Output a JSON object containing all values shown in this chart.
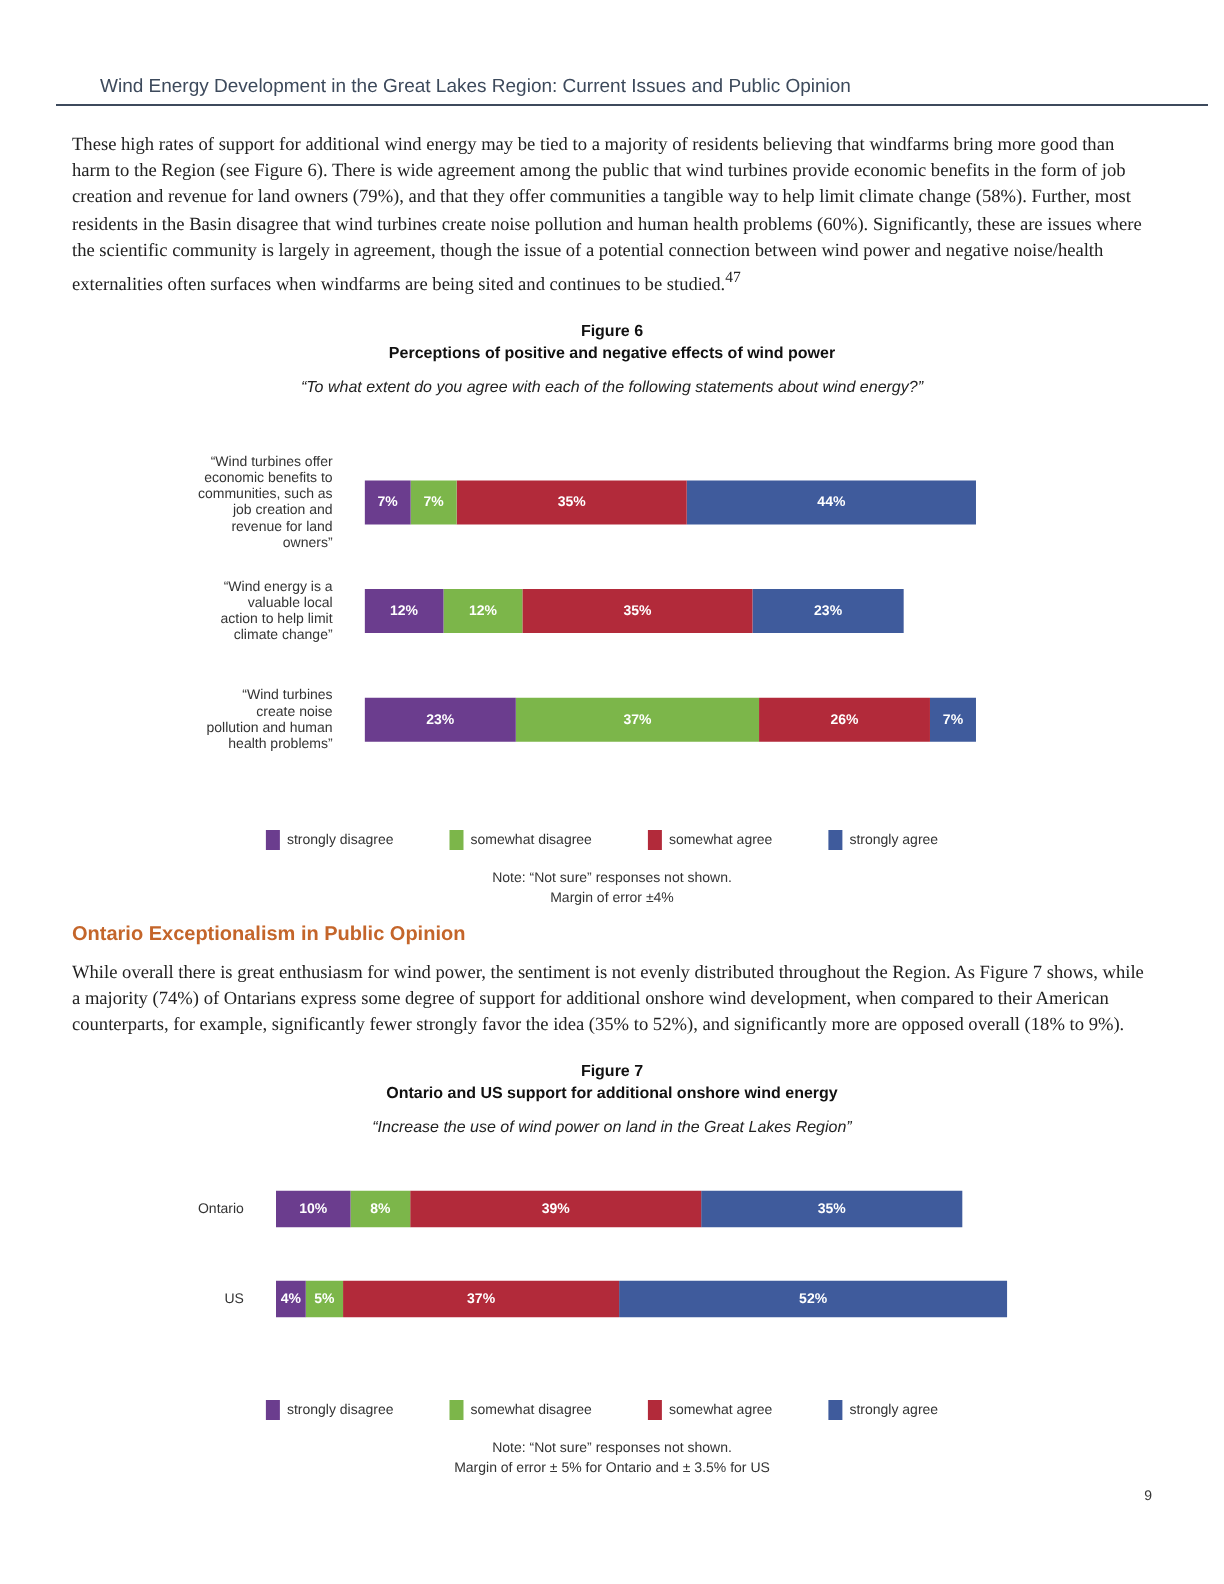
{
  "chart_data": [
    {
      "type": "bar",
      "orientation": "horizontal",
      "stacked": true,
      "title": "Figure 6",
      "subtitle": "Perceptions of positive and negative effects of wind power",
      "annotations": [
        "Wind Energy Development in the Great Lakes Region:  Current Issues and Public Opinion",
        "These high rates of support for additional wind energy may be tied to a majority of residents believing that windfarms bring more good than harm to the Region (see Figure 6). There is wide agreement among the public that wind turbines provide economic benefits in the form of job creation and revenue for land owners (79%), and that they offer communities a tangible way to help limit climate change (58%). Further, most residents in the Basin disagree that wind turbines create noise pollution and human health problems (60%). Significantly, these are issues where the scientific community is largely in agreement, though the issue of a potential connection between wind power and negative noise/health externalities often surfaces when windfarms are being sited and continues to be studied.$^{47}$",
        "“To what extent do you agree with each of the following statements about wind energy?”",
        "Note: “Not sure” responses not shown.",
        "Margin of error ±4%"
      ],
      "categories": [
        "“Wind turbines offer economic benefits to communities, such as job creation and revenue for land owners”",
        "“Wind energy is a valuable local action to help limit climate change”",
        "“Wind turbines create noise pollution and human health problems”"
      ],
      "series": [
        {
          "name": "strongly disagree",
          "color": "#6b3d8e",
          "values": [
            7,
            12,
            23
          ],
          "value_labels": [
            "7%",
            "12%",
            "23%"
          ]
        },
        {
          "name": "somewhat disagree",
          "color": "#7cb64a",
          "values": [
            7,
            12,
            37
          ],
          "value_labels": [
            "7%",
            "12%",
            "37%"
          ]
        },
        {
          "name": "somewhat agree",
          "color": "#b22a3a",
          "values": [
            35,
            35,
            26
          ],
          "value_labels": [
            "35%",
            "35%",
            "26%"
          ]
        },
        {
          "name": "strongly agree",
          "color": "#3f5b9c",
          "values": [
            44,
            23,
            7
          ],
          "value_labels": [
            "44%",
            "23%",
            "7%"
          ]
        }
      ],
      "tick_labels": "y",
      "legend": "bottom",
      "grid": false
    },
    {
      "type": "bar",
      "orientation": "horizontal",
      "stacked": true,
      "title": "Figure 7",
      "subtitle": "Ontario and US support for additional onshore wind energy",
      "annotations": [
        "Ontario Exceptionalism in Public Opinion",
        "While overall there is great enthusiasm for wind power, the sentiment is not evenly distributed throughout the Region. As Figure 7 shows, while a majority (74%) of Ontarians express some degree of support for additional onshore wind development, when compared to their American counterparts, for example, significantly fewer strongly favor the idea (35% to 52%), and significantly more are opposed overall (18% to 9%).",
        "“Increase the use of wind power on land in the Great Lakes Region”",
        "Note: “Not sure” responses not shown.",
        "Margin of error ± 5% for Ontario and ± 3.5% for US",
        "9"
      ],
      "categories": [
        "Ontario",
        "US"
      ],
      "series": [
        {
          "name": "strongly disagree",
          "color": "#6b3d8e",
          "values": [
            10,
            4
          ],
          "value_labels": [
            "10%",
            "4%"
          ]
        },
        {
          "name": "somewhat disagree",
          "color": "#7cb64a",
          "values": [
            8,
            5
          ],
          "value_labels": [
            "8%",
            "5%"
          ]
        },
        {
          "name": "somewhat agree",
          "color": "#b22a3a",
          "values": [
            39,
            37
          ],
          "value_labels": [
            "39%",
            "37%"
          ]
        },
        {
          "name": "strongly agree",
          "color": "#3f5b9c",
          "values": [
            35,
            52
          ],
          "value_labels": [
            "35%",
            "52%"
          ]
        }
      ],
      "tick_labels": "y",
      "legend": "bottom",
      "grid": false
    }
  ]
}
